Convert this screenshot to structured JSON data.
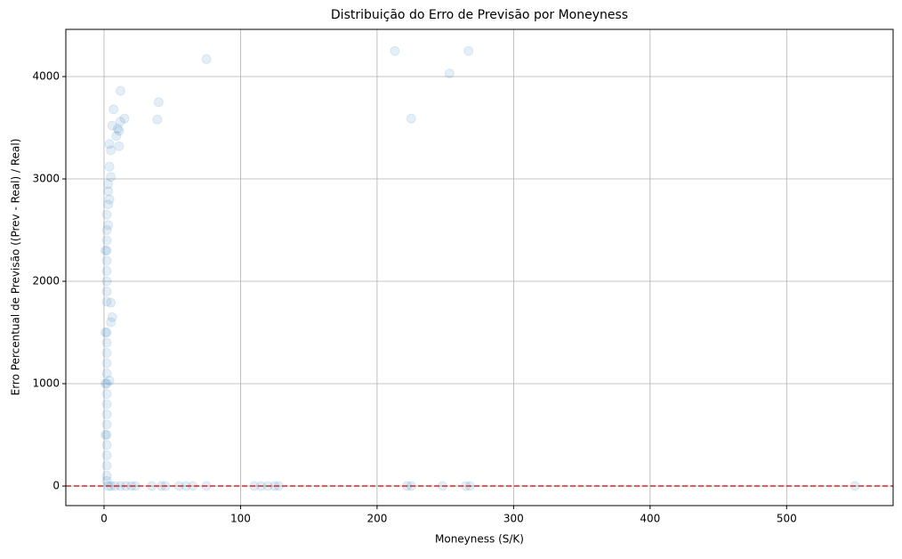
{
  "chart_data": {
    "type": "scatter",
    "title": "Distribuição do Erro de Previsão por Moneyness",
    "x_label": "Moneyness (S/K)",
    "y_label": "Erro Percentual de Previsão ((Prev - Real) / Real)",
    "xlim": [
      -28,
      578
    ],
    "ylim": [
      -191,
      4461
    ],
    "xticks": [
      0,
      100,
      200,
      300,
      400,
      500
    ],
    "yticks": [
      0,
      1000,
      2000,
      3000,
      4000
    ],
    "grid": true,
    "color": "#1f77b4",
    "alpha": 0.12,
    "hline": {
      "y": 0,
      "color": "#d62728",
      "style": "dashed"
    },
    "x": [
      213,
      267,
      75,
      253,
      12,
      40,
      7,
      15,
      39,
      225,
      12,
      6,
      10,
      11,
      9,
      4,
      11,
      5,
      4,
      5,
      3,
      3,
      4,
      3,
      2,
      3,
      2,
      2,
      2,
      2,
      2,
      2,
      2,
      2,
      5,
      6,
      5,
      2,
      2,
      2,
      2,
      2,
      4,
      2,
      2,
      2,
      2,
      2,
      2,
      2,
      2,
      2,
      2,
      2,
      3,
      5,
      8,
      12,
      16,
      20,
      23,
      35,
      42,
      45,
      55,
      60,
      65,
      75,
      110,
      115,
      120,
      125,
      128,
      222,
      225,
      248,
      265,
      268,
      550,
      1,
      1,
      1,
      1
    ],
    "y": [
      4250,
      4250,
      4170,
      4030,
      3860,
      3750,
      3680,
      3590,
      3580,
      3590,
      3560,
      3520,
      3490,
      3470,
      3420,
      3340,
      3320,
      3280,
      3120,
      3020,
      2950,
      2880,
      2800,
      2750,
      2650,
      2550,
      2500,
      2400,
      2300,
      2200,
      2100,
      2000,
      1900,
      1800,
      1790,
      1650,
      1600,
      1500,
      1400,
      1300,
      1200,
      1100,
      1030,
      1000,
      900,
      800,
      700,
      600,
      500,
      400,
      300,
      200,
      100,
      50,
      0,
      0,
      0,
      0,
      0,
      0,
      0,
      0,
      0,
      0,
      0,
      0,
      0,
      0,
      0,
      0,
      0,
      0,
      0,
      0,
      0,
      0,
      0,
      0,
      0,
      1500,
      2300,
      1000,
      500
    ]
  }
}
